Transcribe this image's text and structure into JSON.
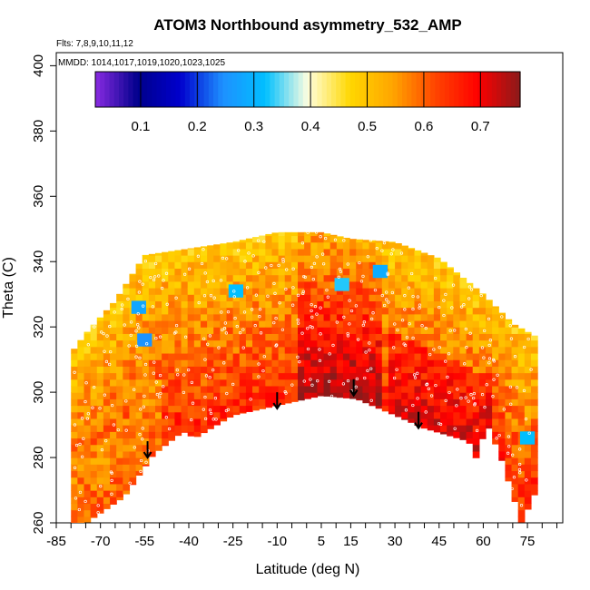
{
  "chart_data": {
    "type": "heatmap",
    "title": "ATOM3 Northbound asymmetry_532_AMP",
    "subtitle_flights": "Flts: 7,8,9,10,11,12",
    "subtitle_dates": "MMDD: 1014,1017,1019,1020,1023,1025",
    "xlabel": "Latitude (deg N)",
    "ylabel": "Theta (C)",
    "xlim": [
      -85,
      87
    ],
    "ylim": [
      260,
      404
    ],
    "x_ticks": [
      -85,
      -70,
      -55,
      -40,
      -25,
      -10,
      5,
      15,
      30,
      45,
      60,
      75
    ],
    "y_ticks": [
      260,
      280,
      300,
      320,
      340,
      360,
      380,
      400
    ],
    "colorbar": {
      "range": [
        0.02,
        0.77
      ],
      "ticks": [
        0.1,
        0.2,
        0.3,
        0.4,
        0.5,
        0.6,
        0.7
      ],
      "colors": [
        "#8a2be2",
        "#00008b",
        "#0000cd",
        "#1e90ff",
        "#00bfff",
        "#ffffe0",
        "#ffd700",
        "#ffa500",
        "#ff4500",
        "#ff0000",
        "#8b1a1a"
      ]
    },
    "upper_boundary": [
      [
        -80,
        312
      ],
      [
        -75,
        318
      ],
      [
        -65,
        328
      ],
      [
        -55,
        342
      ],
      [
        -40,
        344
      ],
      [
        -25,
        346
      ],
      [
        -10,
        349
      ],
      [
        5,
        349
      ],
      [
        15,
        347
      ],
      [
        30,
        346
      ],
      [
        45,
        341
      ],
      [
        60,
        330
      ],
      [
        70,
        321
      ],
      [
        78,
        317
      ]
    ],
    "lower_boundary": [
      [
        -75,
        260
      ],
      [
        -62,
        268
      ],
      [
        -52,
        281
      ],
      [
        -42,
        288
      ],
      [
        -38,
        286
      ],
      [
        -25,
        293
      ],
      [
        -10,
        296
      ],
      [
        5,
        299
      ],
      [
        17,
        298
      ],
      [
        30,
        293
      ],
      [
        40,
        289
      ],
      [
        55,
        285
      ],
      [
        58,
        279
      ],
      [
        61,
        291
      ],
      [
        66,
        280
      ],
      [
        73,
        260
      ],
      [
        78,
        270
      ]
    ],
    "arrows": [
      {
        "lat": -54,
        "theta_top": 285,
        "theta_tip": 280
      },
      {
        "lat": -10,
        "theta_top": 300,
        "theta_tip": 295
      },
      {
        "lat": 16,
        "theta_top": 304,
        "theta_tip": 299
      },
      {
        "lat": 38,
        "theta_top": 294,
        "theta_tip": 289
      }
    ],
    "blue_patches": [
      {
        "lat": -57,
        "theta": 326,
        "value": 0.28
      },
      {
        "lat": -55,
        "theta": 316,
        "value": 0.25
      },
      {
        "lat": -24,
        "theta": 331,
        "value": 0.32
      },
      {
        "lat": 25,
        "theta": 337,
        "value": 0.29
      },
      {
        "lat": 12,
        "theta": 333,
        "value": 0.33
      },
      {
        "lat": 75,
        "theta": 286,
        "value": 0.32
      }
    ]
  }
}
